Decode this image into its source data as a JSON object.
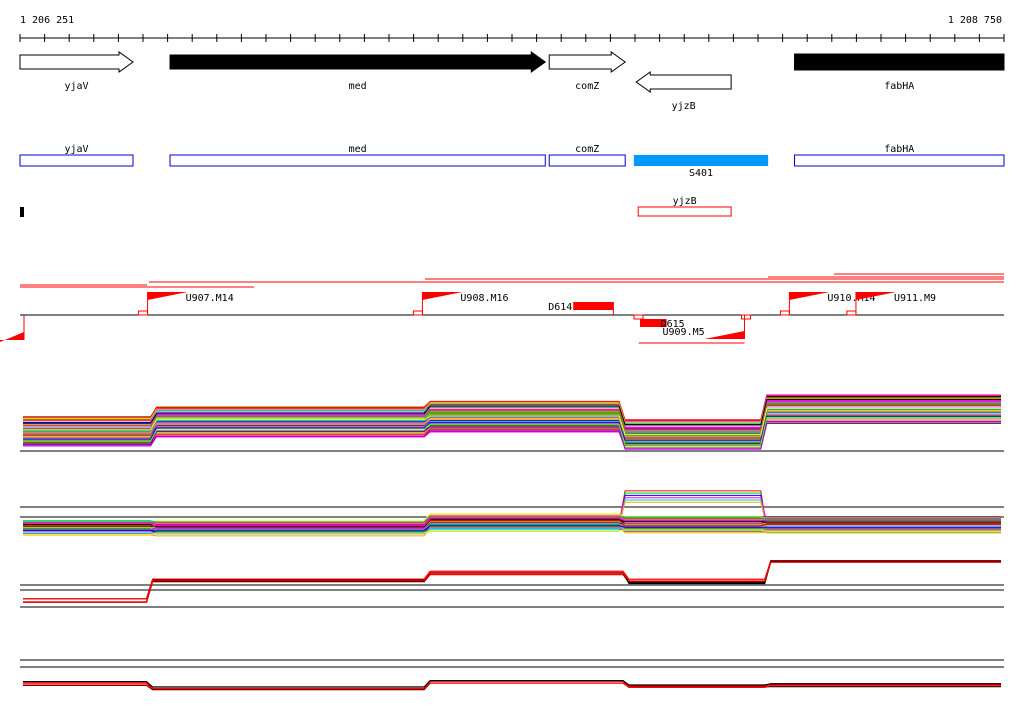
{
  "ruler": {
    "start": 1206251,
    "end": 1208750,
    "start_label": "1 206 251",
    "end_label": "1 208 750",
    "tick_count": 40
  },
  "genes": [
    {
      "name": "yjaV",
      "start": 1206251,
      "end": 1206538,
      "strand": "+",
      "fill": "#ffffff"
    },
    {
      "name": "med",
      "start": 1206632,
      "end": 1207585,
      "strand": "+",
      "fill": "#000000"
    },
    {
      "name": "comZ",
      "start": 1207595,
      "end": 1207788,
      "strand": "+",
      "fill": "#ffffff"
    },
    {
      "name": "yjzB",
      "start": 1207816,
      "end": 1208057,
      "strand": "-",
      "fill": "#ffffff"
    },
    {
      "name": "fabHA",
      "start": 1208218,
      "end": 1208750,
      "strand": "+",
      "fill": "#000000"
    }
  ],
  "cds_boxes": [
    {
      "name": "yjaV",
      "start": 1206251,
      "end": 1206538,
      "color": "#0000cc",
      "row": 0
    },
    {
      "name": "med",
      "start": 1206632,
      "end": 1207585,
      "color": "#0000cc",
      "row": 0
    },
    {
      "name": "comZ",
      "start": 1207595,
      "end": 1207788,
      "color": "#0000cc",
      "row": 0
    },
    {
      "name": "fabHA",
      "start": 1208218,
      "end": 1208750,
      "color": "#0000cc",
      "row": 0
    },
    {
      "name": "yjzB",
      "start": 1207821,
      "end": 1208057,
      "color": "#ff0000",
      "row": 1
    }
  ],
  "segments": [
    {
      "name": "S401",
      "start": 1207810,
      "end": 1208151,
      "color": "#0099ff"
    }
  ],
  "transcription_units": [
    {
      "name": "U907.M14",
      "pos": 1206575,
      "strand": "+"
    },
    {
      "name": "U908.M16",
      "pos": 1207273,
      "strand": "+"
    },
    {
      "name": "U909.M5",
      "pos": 1208091,
      "strand": "-"
    },
    {
      "name": "U910.M14",
      "pos": 1208205,
      "strand": "+"
    },
    {
      "name": "U911.M9",
      "pos": 1208374,
      "strand": "+"
    }
  ],
  "terminators": [
    {
      "name": "D614",
      "start": 1207656,
      "end": 1207758,
      "strand": "+"
    },
    {
      "name": "D615",
      "start": 1207818,
      "end": 1207921,
      "strand": "-"
    }
  ],
  "colors": {
    "accent": "#ff0000",
    "segment": "#0099ff",
    "cds": "#0000cc"
  },
  "profile_tracks": [
    {
      "breaks": [
        1206251,
        1206590,
        1207285,
        1207780,
        1208140,
        1208750
      ],
      "levels": [
        0.45,
        0.6,
        0.68,
        0.4,
        0.8
      ],
      "spread": 0.45,
      "series": 70
    },
    {
      "breaks": [
        1206251,
        1206590,
        1207285,
        1207780,
        1208140,
        1208750
      ],
      "levels": [
        0.3,
        0.3,
        0.4,
        0.35,
        0.35
      ],
      "spread": 0.25,
      "series": 60,
      "peak": [
        1207780,
        1208010,
        0.95
      ]
    },
    {
      "breaks": [
        1206251,
        1206580,
        1207285,
        1207790,
        1208150,
        1208750
      ],
      "levels": [
        0.2,
        0.55,
        0.7,
        0.55,
        0.9
      ],
      "spread": 0.08,
      "series": 5,
      "mono": true
    },
    {
      "breaks": [
        1206251,
        1206580,
        1207285,
        1207790,
        1208150,
        1208750
      ],
      "levels": [
        0.55,
        0.4,
        0.6,
        0.45,
        0.5
      ],
      "spread": 0.12,
      "series": 5,
      "mono": true
    }
  ]
}
